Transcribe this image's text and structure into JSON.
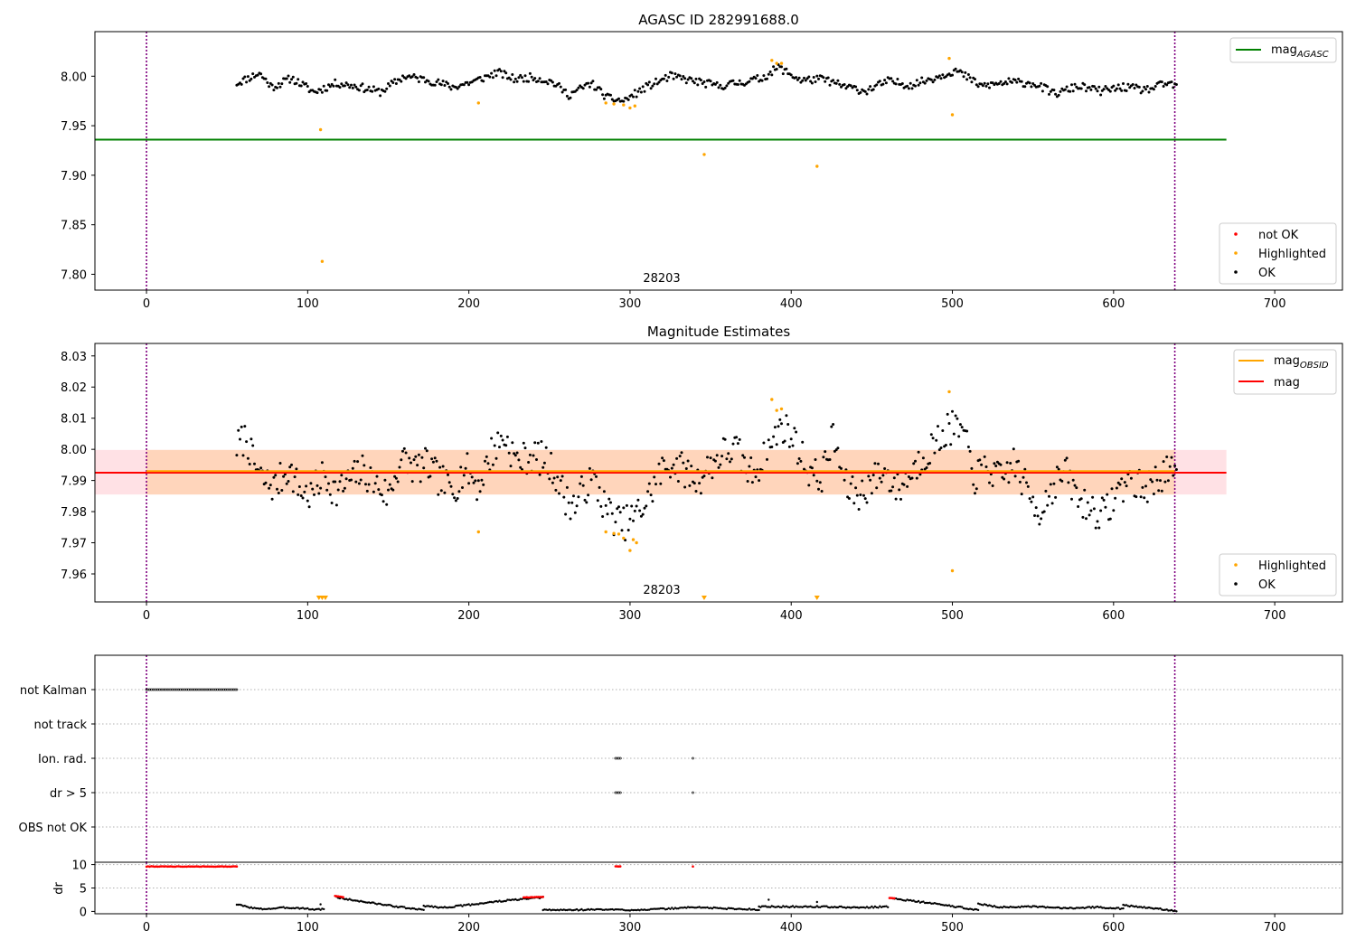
{
  "colors": {
    "ok": "#000000",
    "highlighted": "#ffa500",
    "not_ok": "#ff0000",
    "agasc_line": "#008000",
    "mag_line": "#ff0000",
    "mag_obsid_line": "#ffa500",
    "obs_band": "#ffd2b4",
    "mag_band": "#ffdce1",
    "obs_marker": "#800080",
    "grid": "#b0b0b0"
  },
  "chart_data": [
    {
      "type": "scatter",
      "title": "AGASC ID 282991688.0",
      "xlim": [
        -32,
        742
      ],
      "ylim": [
        7.784,
        8.045
      ],
      "xticks": [
        0,
        100,
        200,
        300,
        400,
        500,
        600,
        700
      ],
      "yticks": [
        7.8,
        7.85,
        7.9,
        7.95,
        8.0
      ],
      "ytick_decimals": 2,
      "obs_boundaries": [
        0,
        638
      ],
      "obsid_label": {
        "text": "28203",
        "x": 319,
        "y": 7.792
      },
      "lines": [
        {
          "name": "mag_AGASC",
          "y": 7.936,
          "x": [
            -32,
            670
          ]
        }
      ],
      "legend_lines": {
        "position": "top-right",
        "entries": [
          {
            "base": "mag",
            "sub": "AGASC"
          }
        ]
      },
      "legend_points": {
        "position": "bottom-right",
        "entries": [
          "not OK",
          "Highlighted",
          "OK"
        ]
      },
      "series": [
        {
          "name": "OK",
          "color": "#000000",
          "x": [
            56,
            70,
            78,
            90,
            104,
            118,
            130,
            145,
            160,
            175,
            190,
            204,
            218,
            228,
            240,
            252,
            262,
            276,
            286,
            296,
            310,
            325,
            340,
            355,
            370,
            382,
            392,
            406,
            420,
            432,
            446,
            460,
            474,
            490,
            502,
            518,
            535,
            550,
            564,
            578,
            592,
            606,
            620,
            634,
            639
          ],
          "y": [
            7.993,
            8.003,
            7.989,
            7.998,
            7.984,
            7.993,
            7.99,
            7.984,
            8.0,
            7.996,
            7.989,
            7.995,
            8.004,
            7.997,
            7.999,
            7.994,
            7.981,
            7.993,
            7.978,
            7.975,
            7.989,
            8.0,
            7.995,
            7.99,
            7.994,
            7.998,
            8.009,
            7.996,
            7.997,
            7.99,
            7.985,
            7.995,
            7.991,
            7.999,
            8.006,
            7.99,
            7.994,
            7.993,
            7.982,
            7.99,
            7.985,
            7.989,
            7.986,
            7.993,
            7.989
          ]
        },
        {
          "name": "Highlighted",
          "color": "#ffa500",
          "x": [
            108,
            109,
            206,
            285,
            290,
            296,
            300,
            303,
            346,
            388,
            391,
            394,
            416,
            498,
            500
          ],
          "y": [
            7.946,
            7.813,
            7.973,
            7.973,
            7.972,
            7.971,
            7.968,
            7.97,
            7.921,
            8.016,
            8.013,
            8.013,
            7.909,
            8.018,
            7.961
          ]
        }
      ]
    },
    {
      "type": "scatter",
      "title": "Magnitude Estimates",
      "xlim": [
        -32,
        742
      ],
      "ylim": [
        7.951,
        8.034
      ],
      "xticks": [
        0,
        100,
        200,
        300,
        400,
        500,
        600,
        700
      ],
      "yticks": [
        7.96,
        7.97,
        7.98,
        7.99,
        8.0,
        8.01,
        8.02,
        8.03
      ],
      "ytick_decimals": 2,
      "obs_boundaries": [
        0,
        638
      ],
      "obsid_label": {
        "text": "28203",
        "x": 319,
        "y": 7.9535
      },
      "bands": [
        {
          "name": "mag band",
          "x": [
            -32,
            670
          ],
          "y": [
            7.9855,
            7.9998
          ],
          "color": "#ffdce1"
        },
        {
          "name": "obs band",
          "x": [
            0,
            638
          ],
          "y": [
            7.9855,
            7.9998
          ],
          "color": "#ffd2b4"
        }
      ],
      "lines": [
        {
          "name": "mag_OBSID",
          "y": 7.9927,
          "x": [
            0,
            638
          ]
        },
        {
          "name": "mag",
          "y": 7.9925,
          "x": [
            -32,
            670
          ]
        }
      ],
      "legend_lines": {
        "position": "top-right",
        "entries": [
          {
            "base": "mag",
            "sub": "OBSID"
          },
          {
            "base": "mag",
            "sub": ""
          }
        ]
      },
      "legend_points": {
        "position": "bottom-right",
        "entries": [
          "Highlighted",
          "OK"
        ]
      },
      "series": [
        {
          "name": "OK",
          "color": "#000000",
          "x": [
            56,
            62,
            66,
            72,
            80,
            88,
            95,
            102,
            110,
            118,
            126,
            134,
            142,
            150,
            158,
            166,
            174,
            182,
            190,
            198,
            206,
            214,
            222,
            230,
            238,
            246,
            254,
            260,
            266,
            272,
            278,
            284,
            290,
            296,
            302,
            310,
            318,
            326,
            334,
            342,
            350,
            358,
            366,
            374,
            382,
            388,
            394,
            402,
            410,
            418,
            426,
            434,
            442,
            450,
            458,
            466,
            474,
            482,
            490,
            498,
            506,
            514,
            522,
            530,
            538,
            546,
            554,
            562,
            570,
            578,
            586,
            594,
            602,
            610,
            618,
            626,
            634,
            639
          ],
          "y": [
            8.001,
            8.004,
            7.996,
            7.99,
            7.988,
            7.994,
            7.987,
            7.985,
            7.992,
            7.986,
            7.99,
            7.993,
            7.989,
            7.985,
            7.997,
            7.994,
            7.995,
            7.99,
            7.987,
            7.994,
            7.988,
            7.999,
            8.004,
            7.996,
            7.998,
            7.997,
            7.992,
            7.984,
            7.982,
            7.988,
            7.99,
            7.982,
            7.978,
            7.976,
            7.978,
            7.983,
            7.992,
            7.996,
            7.993,
            7.99,
            7.995,
            7.999,
            8.0,
            7.992,
            7.996,
            8.002,
            8.008,
            8.003,
            7.994,
            7.99,
            8.004,
            7.988,
            7.985,
            7.99,
            7.993,
            7.987,
            7.992,
            7.998,
            8.002,
            8.007,
            8.006,
            7.991,
            7.994,
            7.99,
            7.996,
            7.987,
            7.98,
            7.988,
            7.993,
            7.984,
            7.981,
            7.979,
            7.986,
            7.991,
            7.987,
            7.99,
            7.994,
            7.989
          ]
        },
        {
          "name": "Highlighted",
          "color": "#ffa500",
          "x": [
            206,
            285,
            290,
            293,
            296,
            300,
            302,
            304,
            388,
            391,
            394,
            498,
            500
          ],
          "y": [
            7.9735,
            7.9735,
            7.973,
            7.9728,
            7.9715,
            7.9675,
            7.971,
            7.97,
            8.016,
            8.0125,
            8.013,
            8.0185,
            7.961
          ]
        },
        {
          "name": "Highlighted (below axis)",
          "color": "#ffa500",
          "marker": "triangle-down",
          "x": [
            107,
            109,
            111,
            346,
            416
          ],
          "y": [
            7.952,
            7.952,
            7.952,
            7.952,
            7.952
          ]
        }
      ]
    },
    {
      "type": "scatter",
      "title": "",
      "xlim": [
        -32,
        742
      ],
      "categories": [
        "not Kalman",
        "not track",
        "Ion. rad.",
        "dr > 5",
        "OBS not OK"
      ],
      "obs_boundaries": [
        0,
        638
      ],
      "flag_segments": [
        {
          "category": "not Kalman",
          "x": [
            0,
            56
          ]
        },
        {
          "category": "Ion. rad.",
          "x": [
            291,
            294
          ]
        },
        {
          "category": "Ion. rad.",
          "x": [
            339,
            339
          ]
        },
        {
          "category": "dr > 5",
          "x": [
            291,
            294
          ]
        },
        {
          "category": "dr > 5",
          "x": [
            339,
            339
          ]
        }
      ]
    },
    {
      "type": "scatter",
      "title": "",
      "ylabel": "dr",
      "xlim": [
        -32,
        742
      ],
      "ylim": [
        -0.5,
        10.5
      ],
      "xticks": [
        0,
        100,
        200,
        300,
        400,
        500,
        600,
        700
      ],
      "yticks": [
        0,
        5,
        10
      ],
      "ytick_decimals": 0,
      "obs_boundaries": [
        0,
        638
      ],
      "series": [
        {
          "name": "dr OK",
          "color": "#000000",
          "segments": [
            {
              "x": [
                56,
                62,
                70,
                78,
                86,
                96,
                104,
                110
              ],
              "y": [
                1.5,
                1.0,
                0.5,
                0.6,
                0.8,
                0.7,
                0.4,
                0.5
              ]
            },
            {
              "x": [
                118,
                128,
                140,
                152,
                164,
                172
              ],
              "y": [
                3.0,
                2.4,
                1.8,
                1.2,
                0.6,
                0.3
              ]
            },
            {
              "x": [
                172,
                184,
                198,
                212,
                226,
                240,
                246
              ],
              "y": [
                1.2,
                0.8,
                1.3,
                1.9,
                2.4,
                2.8,
                3.0
              ]
            },
            {
              "x": [
                246,
                262,
                280,
                300,
                320,
                340,
                360,
                380
              ],
              "y": [
                0.3,
                0.3,
                0.4,
                0.3,
                0.5,
                0.9,
                0.6,
                0.4
              ]
            },
            {
              "x": [
                380,
                400,
                420,
                440,
                460
              ],
              "y": [
                1.0,
                1.0,
                1.0,
                0.8,
                1.0
              ]
            },
            {
              "x": [
                463,
                476,
                490,
                504,
                516
              ],
              "y": [
                2.8,
                2.2,
                1.6,
                0.9,
                0.3
              ]
            },
            {
              "x": [
                516,
                530,
                550,
                570,
                590,
                606
              ],
              "y": [
                1.6,
                0.9,
                1.0,
                0.7,
                0.9,
                0.6
              ]
            },
            {
              "x": [
                606,
                620,
                632,
                639
              ],
              "y": [
                1.3,
                0.8,
                0.4,
                0.0
              ]
            }
          ],
          "extra_points": {
            "x": [
              108,
              386,
              416
            ],
            "y": [
              1.5,
              2.5,
              2.0
            ]
          }
        },
        {
          "name": "dr not OK",
          "color": "#ff0000",
          "segments": [
            {
              "x": [
                0,
                56
              ],
              "y": [
                9.6,
                9.6
              ]
            },
            {
              "x": [
                291,
                294
              ],
              "y": [
                9.6,
                9.6
              ]
            },
            {
              "x": [
                339,
                339
              ],
              "y": [
                9.6,
                9.6
              ]
            },
            {
              "x": [
                117,
                122
              ],
              "y": [
                3.3,
                3.0
              ]
            },
            {
              "x": [
                234,
                246
              ],
              "y": [
                3.0,
                3.1
              ]
            },
            {
              "x": [
                461,
                464
              ],
              "y": [
                2.9,
                2.8
              ]
            }
          ]
        }
      ]
    }
  ]
}
